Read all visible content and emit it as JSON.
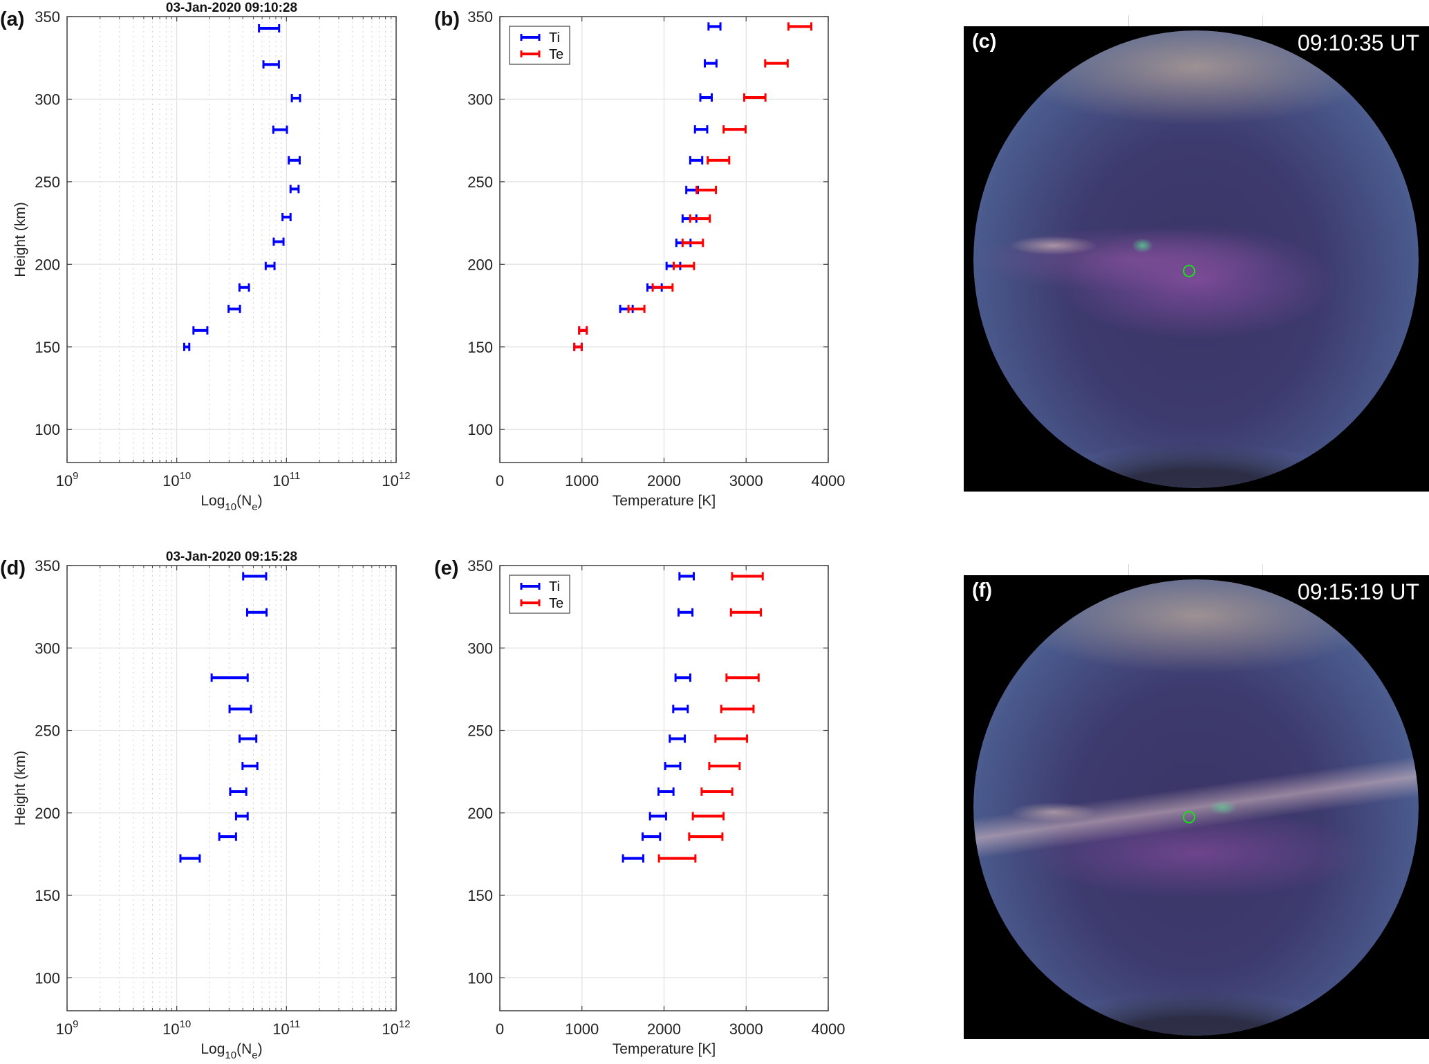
{
  "figure": {
    "panels": {
      "a": {
        "label": "(a)",
        "title": "03-Jan-2020 09:10:28"
      },
      "b": {
        "label": "(b)"
      },
      "c": {
        "label": "(c)",
        "timestamp": "09:10:35 UT"
      },
      "d": {
        "label": "(d)",
        "title": "03-Jan-2020 09:15:28"
      },
      "e": {
        "label": "(e)"
      },
      "f": {
        "label": "(f)",
        "timestamp": "09:15:19 UT"
      }
    },
    "colors": {
      "Ti": "#0000ff",
      "Te": "#ff0000",
      "Ne": "#0000ff",
      "marker_circle": "#18e018",
      "grid": "#e3e3e3",
      "axis": "#404040"
    }
  },
  "chart_data": [
    {
      "id": "a",
      "type": "scatter",
      "subtype": "horizontal-errorbar",
      "title": "03-Jan-2020 09:10:28",
      "xlabel": "Log10(Ne)",
      "xlabel_main": "Log",
      "xlabel_sub": "10",
      "xlabel_after": "(N",
      "xlabel_sub2": "e",
      "xlabel_end": ")",
      "ylabel": "Height (km)",
      "xscale": "log",
      "xlim": [
        1000000000.0,
        1000000000000.0
      ],
      "ylim": [
        80,
        350
      ],
      "xticks": [
        {
          "value": 1000000000.0,
          "base": "10",
          "exp": "9"
        },
        {
          "value": 10000000000.0,
          "base": "10",
          "exp": "10"
        },
        {
          "value": 100000000000.0,
          "base": "10",
          "exp": "11"
        },
        {
          "value": 1000000000000.0,
          "base": "10",
          "exp": "12"
        }
      ],
      "yticks": [
        100,
        150,
        200,
        250,
        300,
        350
      ],
      "grid": true,
      "series": [
        {
          "name": "Ne",
          "color": "#0000ff",
          "points": [
            {
              "h": 150.0,
              "lo": 11700000000.0,
              "hi": 13000000000.0
            },
            {
              "h": 160.0,
              "lo": 14200000000.0,
              "hi": 19000000000.0
            },
            {
              "h": 173.0,
              "lo": 29700000000.0,
              "hi": 37700000000.0
            },
            {
              "h": 186.0,
              "lo": 37300000000.0,
              "hi": 45500000000.0
            },
            {
              "h": 199.0,
              "lo": 64700000000.0,
              "hi": 77800000000.0
            },
            {
              "h": 213.7,
              "lo": 76600000000.0,
              "hi": 94000000000.0
            },
            {
              "h": 228.6,
              "lo": 92100000000.0,
              "hi": 109000000000.0
            },
            {
              "h": 245.6,
              "lo": 109000000000.0,
              "hi": 129000000000.0
            },
            {
              "h": 263.0,
              "lo": 105000000000.0,
              "hi": 132000000000.0
            },
            {
              "h": 281.5,
              "lo": 75900000000.0,
              "hi": 101000000000.0
            },
            {
              "h": 300.6,
              "lo": 112000000000.0,
              "hi": 133000000000.0
            },
            {
              "h": 321.0,
              "lo": 61700000000.0,
              "hi": 85300000000.0
            },
            {
              "h": 342.9,
              "lo": 56200000000.0,
              "hi": 85700000000.0
            }
          ]
        }
      ]
    },
    {
      "id": "b",
      "type": "scatter",
      "subtype": "horizontal-errorbar",
      "title": "",
      "xlabel": "Temperature [K]",
      "ylabel": "",
      "xscale": "linear",
      "xlim": [
        0,
        4000
      ],
      "ylim": [
        80,
        350
      ],
      "xticks": [
        0,
        1000,
        2000,
        3000,
        4000
      ],
      "yticks": [
        100,
        150,
        200,
        250,
        300,
        350
      ],
      "grid": true,
      "legend": {
        "position": "top-left",
        "entries": [
          "Ti",
          "Te"
        ]
      },
      "series": [
        {
          "name": "Ti",
          "color": "#0000ff",
          "points": [
            {
              "h": 150.0,
              "lo": 907,
              "hi": 997
            },
            {
              "h": 160.0,
              "lo": 966,
              "hi": 1059
            },
            {
              "h": 173.0,
              "lo": 1466,
              "hi": 1618
            },
            {
              "h": 186.0,
              "lo": 1798,
              "hi": 1972
            },
            {
              "h": 199.0,
              "lo": 2031,
              "hi": 2197
            },
            {
              "h": 213.0,
              "lo": 2150,
              "hi": 2323
            },
            {
              "h": 227.7,
              "lo": 2226,
              "hi": 2394
            },
            {
              "h": 245.0,
              "lo": 2271,
              "hi": 2413
            },
            {
              "h": 263.0,
              "lo": 2319,
              "hi": 2465
            },
            {
              "h": 281.7,
              "lo": 2377,
              "hi": 2526
            },
            {
              "h": 301.0,
              "lo": 2442,
              "hi": 2581
            },
            {
              "h": 321.7,
              "lo": 2497,
              "hi": 2639
            },
            {
              "h": 344.0,
              "lo": 2542,
              "hi": 2687
            }
          ]
        },
        {
          "name": "Te",
          "color": "#ff0000",
          "points": [
            {
              "h": 150.0,
              "lo": 907,
              "hi": 997
            },
            {
              "h": 160.0,
              "lo": 966,
              "hi": 1059
            },
            {
              "h": 173.0,
              "lo": 1567,
              "hi": 1761
            },
            {
              "h": 186.0,
              "lo": 1862,
              "hi": 2104
            },
            {
              "h": 199.0,
              "lo": 2118,
              "hi": 2365
            },
            {
              "h": 213.0,
              "lo": 2226,
              "hi": 2474
            },
            {
              "h": 227.7,
              "lo": 2319,
              "hi": 2558
            },
            {
              "h": 245.0,
              "lo": 2397,
              "hi": 2632
            },
            {
              "h": 263.0,
              "lo": 2532,
              "hi": 2794
            },
            {
              "h": 281.7,
              "lo": 2726,
              "hi": 2994
            },
            {
              "h": 301.0,
              "lo": 2977,
              "hi": 3235
            },
            {
              "h": 321.7,
              "lo": 3232,
              "hi": 3506
            },
            {
              "h": 344.0,
              "lo": 3516,
              "hi": 3794
            }
          ]
        }
      ]
    },
    {
      "id": "d",
      "type": "scatter",
      "subtype": "horizontal-errorbar",
      "title": "03-Jan-2020 09:15:28",
      "xlabel": "Log10(Ne)",
      "xlabel_main": "Log",
      "xlabel_sub": "10",
      "xlabel_after": "(N",
      "xlabel_sub2": "e",
      "xlabel_end": ")",
      "ylabel": "Height (km)",
      "xscale": "log",
      "xlim": [
        1000000000.0,
        1000000000000.0
      ],
      "ylim": [
        80,
        350
      ],
      "xticks": [
        {
          "value": 1000000000.0,
          "base": "10",
          "exp": "9"
        },
        {
          "value": 10000000000.0,
          "base": "10",
          "exp": "10"
        },
        {
          "value": 100000000000.0,
          "base": "10",
          "exp": "11"
        },
        {
          "value": 1000000000000.0,
          "base": "10",
          "exp": "12"
        }
      ],
      "yticks": [
        100,
        150,
        200,
        250,
        300,
        350
      ],
      "grid": true,
      "series": [
        {
          "name": "Ne",
          "color": "#0000ff",
          "points": [
            {
              "h": 172.4,
              "lo": 10800000000.0,
              "hi": 16200000000.0
            },
            {
              "h": 185.6,
              "lo": 24400000000.0,
              "hi": 34700000000.0
            },
            {
              "h": 198.0,
              "lo": 34700000000.0,
              "hi": 44300000000.0
            },
            {
              "h": 212.9,
              "lo": 30700000000.0,
              "hi": 43000000000.0
            },
            {
              "h": 228.4,
              "lo": 39800000000.0,
              "hi": 54300000000.0
            },
            {
              "h": 245.0,
              "lo": 37400000000.0,
              "hi": 53100000000.0
            },
            {
              "h": 263.0,
              "lo": 30300000000.0,
              "hi": 47500000000.0
            },
            {
              "h": 282.0,
              "lo": 20800000000.0,
              "hi": 44300000000.0
            },
            {
              "h": 321.6,
              "lo": 43800000000.0,
              "hi": 65900000000.0
            },
            {
              "h": 343.5,
              "lo": 40300000000.0,
              "hi": 65300000000.0
            }
          ]
        }
      ]
    },
    {
      "id": "e",
      "type": "scatter",
      "subtype": "horizontal-errorbar",
      "title": "",
      "xlabel": "Temperature [K]",
      "ylabel": "",
      "xscale": "linear",
      "xlim": [
        0,
        4000
      ],
      "ylim": [
        80,
        350
      ],
      "xticks": [
        0,
        1000,
        2000,
        3000,
        4000
      ],
      "yticks": [
        100,
        150,
        200,
        250,
        300,
        350
      ],
      "grid": true,
      "legend": {
        "position": "top-left",
        "entries": [
          "Ti",
          "Te"
        ]
      },
      "series": [
        {
          "name": "Ti",
          "color": "#0000ff",
          "points": [
            {
              "h": 172.4,
              "lo": 1500,
              "hi": 1747
            },
            {
              "h": 185.6,
              "lo": 1739,
              "hi": 1952
            },
            {
              "h": 198.0,
              "lo": 1829,
              "hi": 2025
            },
            {
              "h": 212.9,
              "lo": 1933,
              "hi": 2115
            },
            {
              "h": 228.4,
              "lo": 2014,
              "hi": 2197
            },
            {
              "h": 245.0,
              "lo": 2070,
              "hi": 2253
            },
            {
              "h": 263.0,
              "lo": 2112,
              "hi": 2289
            },
            {
              "h": 282.0,
              "lo": 2140,
              "hi": 2320
            },
            {
              "h": 321.6,
              "lo": 2177,
              "hi": 2346
            },
            {
              "h": 343.5,
              "lo": 2188,
              "hi": 2362
            }
          ]
        },
        {
          "name": "Te",
          "color": "#ff0000",
          "points": [
            {
              "h": 172.4,
              "lo": 1938,
              "hi": 2382
            },
            {
              "h": 185.6,
              "lo": 2306,
              "hi": 2711
            },
            {
              "h": 198.0,
              "lo": 2351,
              "hi": 2725
            },
            {
              "h": 212.9,
              "lo": 2458,
              "hi": 2831
            },
            {
              "h": 228.4,
              "lo": 2551,
              "hi": 2921
            },
            {
              "h": 245.0,
              "lo": 2626,
              "hi": 3011
            },
            {
              "h": 263.0,
              "lo": 2697,
              "hi": 3090
            },
            {
              "h": 282.0,
              "lo": 2761,
              "hi": 3152
            },
            {
              "h": 321.6,
              "lo": 2815,
              "hi": 3180
            },
            {
              "h": 343.5,
              "lo": 2829,
              "hi": 3202
            }
          ]
        }
      ]
    }
  ]
}
